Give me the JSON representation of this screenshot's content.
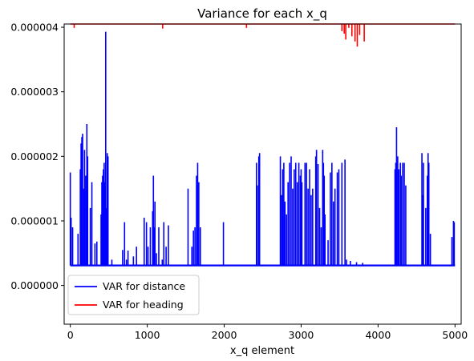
{
  "chart_data": {
    "type": "line",
    "title": "Variance for each x_q",
    "xlabel": "x_q element",
    "ylabel": "",
    "xlim": [
      -80,
      5080
    ],
    "ylim": [
      -6e-07,
      4.05e-06
    ],
    "xticks": [
      0,
      1000,
      2000,
      3000,
      4000,
      5000
    ],
    "xtick_labels": [
      "0",
      "1000",
      "2000",
      "3000",
      "4000",
      "5000"
    ],
    "yticks": [
      0.0,
      1e-06,
      2e-06,
      3e-06,
      4e-06
    ],
    "ytick_labels": [
      "0.000000",
      "0.000001",
      "0.000002",
      "0.000003",
      "0.000004"
    ],
    "grid": false,
    "legend_position": "lower-left",
    "series": [
      {
        "name": "VAR for distance",
        "color": "#0000ff",
        "baseline": 3.1e-07,
        "spikes": [
          [
            0,
            1.75e-06
          ],
          [
            10,
            1.05e-06
          ],
          [
            30,
            9e-07
          ],
          [
            100,
            8e-07
          ],
          [
            130,
            1.8e-06
          ],
          [
            140,
            2.2e-06
          ],
          [
            150,
            2.3e-06
          ],
          [
            160,
            2.35e-06
          ],
          [
            175,
            1.5e-06
          ],
          [
            185,
            2.1e-06
          ],
          [
            200,
            1.7e-06
          ],
          [
            215,
            2.5e-06
          ],
          [
            225,
            2e-06
          ],
          [
            260,
            1.2e-06
          ],
          [
            280,
            1.6e-06
          ],
          [
            320,
            6.5e-07
          ],
          [
            345,
            6.8e-07
          ],
          [
            400,
            1.1e-06
          ],
          [
            410,
            1.6e-06
          ],
          [
            420,
            1.7e-06
          ],
          [
            430,
            1.8e-06
          ],
          [
            440,
            1.9e-06
          ],
          [
            450,
            1.6e-06
          ],
          [
            460,
            3.93e-06
          ],
          [
            470,
            1.2e-06
          ],
          [
            480,
            2.05e-06
          ],
          [
            490,
            2e-06
          ],
          [
            540,
            4e-07
          ],
          [
            680,
            5.5e-07
          ],
          [
            705,
            9.8e-07
          ],
          [
            730,
            4e-07
          ],
          [
            750,
            5.4e-07
          ],
          [
            820,
            4.5e-07
          ],
          [
            860,
            6e-07
          ],
          [
            960,
            1.05e-06
          ],
          [
            990,
            9.8e-07
          ],
          [
            1010,
            6e-07
          ],
          [
            1040,
            9e-07
          ],
          [
            1070,
            1.15e-06
          ],
          [
            1080,
            1.7e-06
          ],
          [
            1090,
            9e-07
          ],
          [
            1100,
            1.3e-06
          ],
          [
            1120,
            5e-07
          ],
          [
            1150,
            9e-07
          ],
          [
            1195,
            4e-07
          ],
          [
            1215,
            9.8e-07
          ],
          [
            1245,
            6e-07
          ],
          [
            1275,
            9.3e-07
          ],
          [
            1530,
            1.5e-06
          ],
          [
            1580,
            6e-07
          ],
          [
            1600,
            8.5e-07
          ],
          [
            1620,
            9e-07
          ],
          [
            1640,
            1.7e-06
          ],
          [
            1655,
            1.9e-06
          ],
          [
            1670,
            1.6e-06
          ],
          [
            1690,
            9e-07
          ],
          [
            1990,
            9.8e-07
          ],
          [
            2420,
            1.9e-06
          ],
          [
            2430,
            1.55e-06
          ],
          [
            2450,
            2e-06
          ],
          [
            2460,
            2.05e-06
          ],
          [
            2730,
            2e-06
          ],
          [
            2745,
            1.4e-06
          ],
          [
            2760,
            1.8e-06
          ],
          [
            2775,
            1.9e-06
          ],
          [
            2790,
            1.3e-06
          ],
          [
            2810,
            1.1e-06
          ],
          [
            2830,
            1.6e-06
          ],
          [
            2850,
            1.9e-06
          ],
          [
            2870,
            2e-06
          ],
          [
            2890,
            1.5e-06
          ],
          [
            2910,
            1.8e-06
          ],
          [
            2930,
            1.9e-06
          ],
          [
            2950,
            1.6e-06
          ],
          [
            2970,
            1.9e-06
          ],
          [
            2990,
            1.7e-06
          ],
          [
            3000,
            1.8e-06
          ],
          [
            3010,
            1.6e-06
          ],
          [
            3050,
            1.9e-06
          ],
          [
            3070,
            1.9e-06
          ],
          [
            3090,
            1.5e-06
          ],
          [
            3110,
            1.8e-06
          ],
          [
            3130,
            1.4e-06
          ],
          [
            3150,
            1.5e-06
          ],
          [
            3190,
            2e-06
          ],
          [
            3200,
            2.1e-06
          ],
          [
            3220,
            1.88e-06
          ],
          [
            3240,
            1.2e-06
          ],
          [
            3260,
            9e-07
          ],
          [
            3280,
            2.1e-06
          ],
          [
            3290,
            1.9e-06
          ],
          [
            3300,
            1.7e-06
          ],
          [
            3310,
            1.1e-06
          ],
          [
            3350,
            7e-07
          ],
          [
            3380,
            1.75e-06
          ],
          [
            3400,
            1.9e-06
          ],
          [
            3420,
            1.3e-06
          ],
          [
            3440,
            1.5e-06
          ],
          [
            3470,
            1.75e-06
          ],
          [
            3490,
            1.8e-06
          ],
          [
            3530,
            1.9e-06
          ],
          [
            3570,
            1.95e-06
          ],
          [
            3590,
            4e-07
          ],
          [
            3640,
            3.8e-07
          ],
          [
            3720,
            3.6e-07
          ],
          [
            3800,
            3.5e-07
          ],
          [
            4220,
            1.8e-06
          ],
          [
            4230,
            1.9e-06
          ],
          [
            4240,
            2.45e-06
          ],
          [
            4255,
            2e-06
          ],
          [
            4270,
            1.8e-06
          ],
          [
            4290,
            1.9e-06
          ],
          [
            4300,
            1.7e-06
          ],
          [
            4320,
            1.9e-06
          ],
          [
            4340,
            1.9e-06
          ],
          [
            4360,
            1.55e-06
          ],
          [
            4570,
            2.05e-06
          ],
          [
            4580,
            1.4e-06
          ],
          [
            4590,
            1.9e-06
          ],
          [
            4620,
            1.2e-06
          ],
          [
            4640,
            1.7e-06
          ],
          [
            4650,
            2.05e-06
          ],
          [
            4660,
            1.9e-06
          ],
          [
            4680,
            8e-07
          ],
          [
            4960,
            7.5e-07
          ],
          [
            4980,
            1e-06
          ],
          [
            4990,
            9.8e-07
          ]
        ]
      },
      {
        "name": "VAR for heading",
        "color": "#ff0000",
        "baseline": 4.05e-06,
        "spikes": [
          [
            50,
            3.99e-06
          ],
          [
            1200,
            3.98e-06
          ],
          [
            2290,
            3.99e-06
          ],
          [
            3530,
            3.94e-06
          ],
          [
            3560,
            3.9e-06
          ],
          [
            3580,
            3.81e-06
          ],
          [
            3620,
            3.99e-06
          ],
          [
            3660,
            3.86e-06
          ],
          [
            3700,
            3.78e-06
          ],
          [
            3730,
            3.7e-06
          ],
          [
            3760,
            3.88e-06
          ],
          [
            3820,
            3.78e-06
          ]
        ]
      }
    ]
  }
}
